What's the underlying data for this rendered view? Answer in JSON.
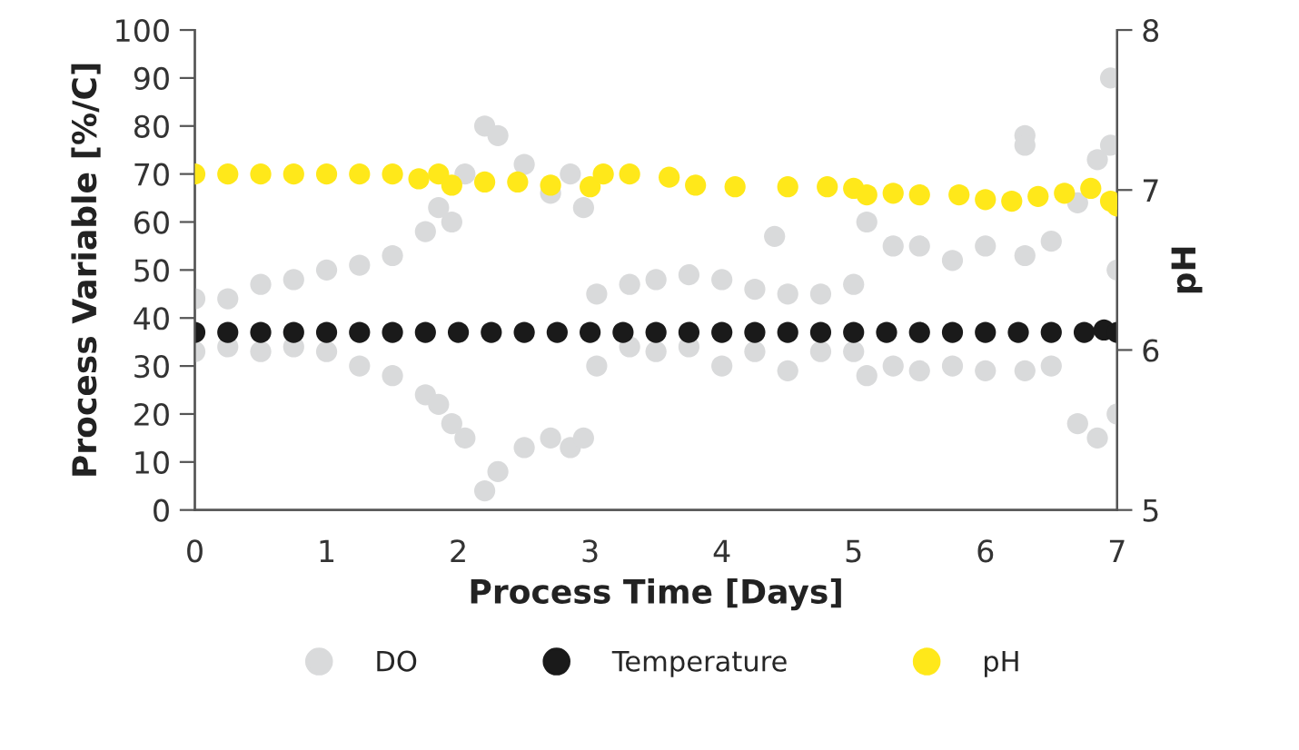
{
  "chart_data": {
    "type": "scatter",
    "xlabel": "Process Time [Days]",
    "ylabel": "Process Variable [%/C]",
    "y2label": "pH",
    "xlim": [
      0,
      7
    ],
    "xticks": [
      0,
      1,
      2,
      3,
      4,
      5,
      6,
      7
    ],
    "ylim": [
      0,
      100
    ],
    "yticks": [
      0,
      10,
      20,
      30,
      40,
      50,
      60,
      70,
      80,
      90,
      100
    ],
    "y2lim": [
      5,
      8
    ],
    "y2ticks": [
      5,
      6,
      7,
      8
    ],
    "grid": false,
    "legend": "bottom",
    "marker": "circle",
    "series": [
      {
        "name": "DO",
        "color": "#d9dadb",
        "x": [
          0,
          0,
          0.25,
          0.25,
          0.5,
          0.5,
          0.75,
          0.75,
          1.0,
          1.0,
          1.25,
          1.25,
          1.5,
          1.5,
          1.75,
          1.75,
          1.85,
          1.85,
          1.95,
          1.95,
          2.05,
          2.05,
          2.2,
          2.2,
          2.3,
          2.3,
          2.5,
          2.5,
          2.7,
          2.7,
          2.85,
          2.85,
          2.95,
          2.95,
          3.05,
          3.05,
          3.3,
          3.3,
          3.5,
          3.5,
          3.75,
          3.75,
          4.0,
          4.0,
          4.25,
          4.25,
          4.4,
          4.5,
          4.5,
          4.75,
          4.75,
          5.0,
          5.0,
          5.1,
          5.1,
          5.3,
          5.3,
          5.5,
          5.5,
          5.75,
          5.75,
          6.0,
          6.0,
          6.3,
          6.3,
          6.3,
          6.3,
          6.5,
          6.5,
          6.7,
          6.7,
          6.85,
          6.85,
          6.95,
          6.95,
          7.0,
          7.0
        ],
        "values": [
          44,
          33,
          44,
          34,
          47,
          33,
          48,
          34,
          50,
          33,
          51,
          30,
          53,
          28,
          58,
          24,
          63,
          22,
          60,
          18,
          70,
          15,
          80,
          4,
          78,
          8,
          72,
          13,
          66,
          15,
          70,
          13,
          63,
          15,
          45,
          30,
          47,
          34,
          48,
          33,
          49,
          34,
          48,
          30,
          46,
          33,
          57,
          45,
          29,
          45,
          33,
          47,
          33,
          60,
          28,
          55,
          30,
          55,
          29,
          52,
          30,
          55,
          29,
          78,
          76,
          53,
          29,
          56,
          30,
          64,
          18,
          73,
          15,
          90,
          76,
          50,
          20
        ]
      },
      {
        "name": "Temperature",
        "color": "#1a1a1a",
        "x": [
          0,
          0.25,
          0.5,
          0.75,
          1,
          1.25,
          1.5,
          1.75,
          2,
          2.25,
          2.5,
          2.75,
          3,
          3.25,
          3.5,
          3.75,
          4,
          4.25,
          4.5,
          4.75,
          5,
          5.25,
          5.5,
          5.75,
          6,
          6.25,
          6.5,
          6.75,
          6.9,
          7
        ],
        "values": [
          37,
          37,
          37,
          37,
          37,
          37,
          37,
          37,
          37,
          37,
          37,
          37,
          37,
          37,
          37,
          37,
          37,
          37,
          37,
          37,
          37,
          37,
          37,
          37,
          37,
          37,
          37,
          37,
          37.5,
          37
        ]
      },
      {
        "name": "pH",
        "color": "#ffe81a",
        "axis": "y2",
        "x": [
          0,
          0.25,
          0.5,
          0.75,
          1,
          1.25,
          1.5,
          1.7,
          1.85,
          1.95,
          2.2,
          2.45,
          2.7,
          3.0,
          3.1,
          3.3,
          3.6,
          3.8,
          4.1,
          4.5,
          4.8,
          5.0,
          5.1,
          5.3,
          5.5,
          5.8,
          6.0,
          6.2,
          6.4,
          6.6,
          6.8,
          6.95,
          7.0
        ],
        "values": [
          7.1,
          7.1,
          7.1,
          7.1,
          7.1,
          7.1,
          7.1,
          7.07,
          7.1,
          7.03,
          7.05,
          7.05,
          7.03,
          7.02,
          7.1,
          7.1,
          7.08,
          7.03,
          7.02,
          7.02,
          7.02,
          7.01,
          6.97,
          6.98,
          6.97,
          6.97,
          6.94,
          6.93,
          6.96,
          6.98,
          7.01,
          6.93,
          6.9
        ]
      }
    ]
  }
}
